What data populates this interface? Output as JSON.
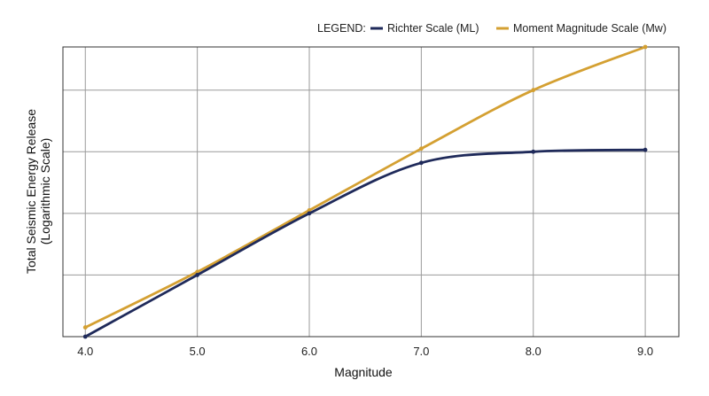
{
  "chart_data": {
    "type": "line",
    "title": "",
    "xlabel": "Magnitude",
    "ylabel": [
      "Total Seismic Energy Release",
      "(Logarithmic Scale)"
    ],
    "x": [
      4.0,
      5.0,
      6.0,
      7.0,
      8.0,
      9.0
    ],
    "xtick_labels": [
      "4.0",
      "5.0",
      "6.0",
      "7.0",
      "8.0",
      "9.0"
    ],
    "xlim": [
      3.8,
      9.3
    ],
    "ylim": [
      0,
      4.7
    ],
    "ytick_values": [
      1,
      2,
      3,
      4
    ],
    "ytick_labels_shown": false,
    "grid": true,
    "legend": {
      "title": "LEGEND:",
      "placement": "top-right"
    },
    "series": [
      {
        "name": "Richter Scale (ML)",
        "color": "#1f2a5a",
        "x": [
          4.0,
          5.0,
          6.0,
          7.0,
          8.0,
          9.0
        ],
        "values": [
          0.0,
          1.0,
          2.0,
          2.82,
          3.0,
          3.03
        ]
      },
      {
        "name": "Moment Magnitude Scale (Mw)",
        "color": "#d4a032",
        "x": [
          4.0,
          5.0,
          6.0,
          7.0,
          8.0,
          9.0
        ],
        "values": [
          0.15,
          1.05,
          2.05,
          3.05,
          4.0,
          4.7
        ]
      }
    ]
  }
}
